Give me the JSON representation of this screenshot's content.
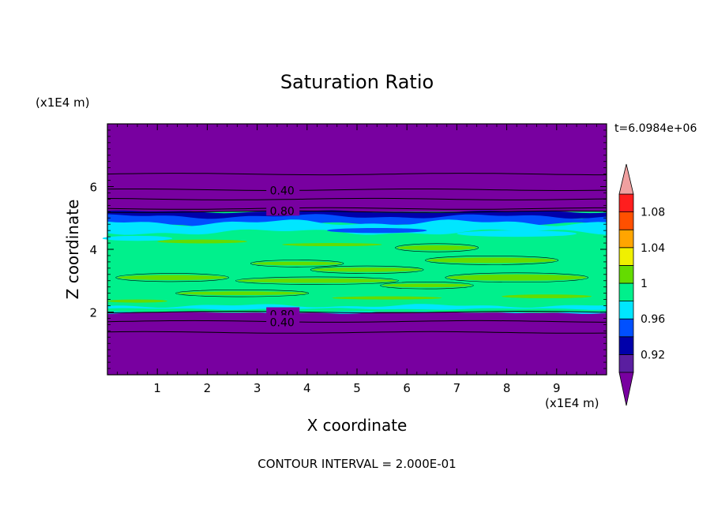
{
  "chart_data": {
    "type": "heatmap",
    "title": "Saturation Ratio",
    "time_label": "t=6.0984e+06",
    "xlabel": "X coordinate",
    "ylabel": "Z coordinate",
    "x_units": "(x1E4 m)",
    "y_units": "(x1E4 m)",
    "xlim": [
      0,
      10
    ],
    "ylim": [
      0,
      8
    ],
    "xticks": [
      1,
      2,
      3,
      4,
      5,
      6,
      7,
      8,
      9
    ],
    "yticks": [
      2,
      4,
      6
    ],
    "footer": "CONTOUR INTERVAL = 2.000E-01",
    "colorbar": {
      "levels": [
        0.9,
        0.92,
        0.94,
        0.96,
        0.98,
        1.0,
        1.02,
        1.04,
        1.06,
        1.08,
        1.1
      ],
      "tick_labels": [
        "0.92",
        "0.96",
        "1",
        "1.04",
        "1.08"
      ],
      "tick_values": [
        0.92,
        0.96,
        1.0,
        1.04,
        1.08
      ],
      "under_color": "#7800a0",
      "over_color": "#f0a0a0",
      "colors": [
        "#5a1ea0",
        "#0000aa",
        "#0050ff",
        "#00e6ff",
        "#00f08c",
        "#64dc00",
        "#f0f000",
        "#ffa500",
        "#ff5000",
        "#ff1e1e"
      ]
    },
    "bands": [
      {
        "z": [
          0.0,
          2.0
        ],
        "value": "<0.9"
      },
      {
        "z": [
          2.0,
          2.55
        ],
        "value": "0.98-1.02"
      },
      {
        "z": [
          2.55,
          4.6
        ],
        "value": "0.98-1.02"
      },
      {
        "z": [
          4.6,
          4.8
        ],
        "value": "0.94-0.98"
      },
      {
        "z": [
          4.8,
          5.2
        ],
        "value": "0.90-0.96"
      },
      {
        "z": [
          5.2,
          8.0
        ],
        "value": "<0.9"
      }
    ],
    "contour_labels": [
      {
        "x": 3.5,
        "z": 5.9,
        "text": "0.40"
      },
      {
        "x": 3.5,
        "z": 5.25,
        "text": "0.80"
      },
      {
        "x": 3.5,
        "z": 1.95,
        "text": "0.80"
      },
      {
        "x": 3.5,
        "z": 1.7,
        "text": "0.40"
      }
    ],
    "contour_lines_z": [
      6.4,
      5.9,
      5.6,
      5.3,
      5.2,
      2.0,
      1.7,
      1.35
    ]
  }
}
